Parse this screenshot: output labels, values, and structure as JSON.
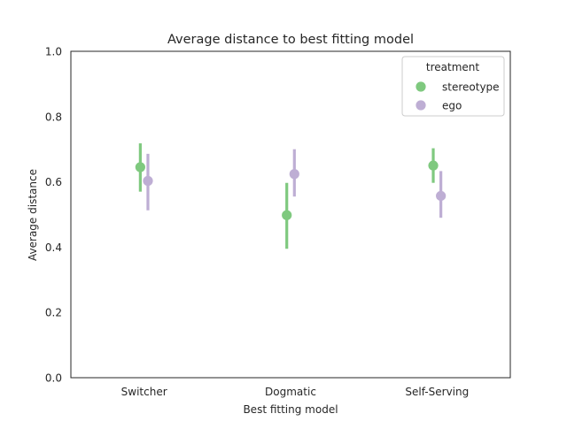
{
  "chart_data": {
    "type": "pointplot",
    "title": "Average distance to best fitting model",
    "xlabel": "Best fitting model",
    "ylabel": "Average distance",
    "categories": [
      "Switcher",
      "Dogmatic",
      "Self-Serving"
    ],
    "ylim": [
      0.0,
      1.0
    ],
    "yticks": [
      "0.0",
      "0.2",
      "0.4",
      "0.6",
      "0.8",
      "1.0"
    ],
    "grid": false,
    "legend": {
      "title": "treatment",
      "placement": "upper right",
      "entries": [
        "stereotype",
        "ego"
      ]
    },
    "series": [
      {
        "name": "stereotype",
        "color": "#7fc97f",
        "values": [
          0.645,
          0.498,
          0.65
        ],
        "ci_low": [
          0.57,
          0.395,
          0.597
        ],
        "ci_high": [
          0.718,
          0.597,
          0.703
        ]
      },
      {
        "name": "ego",
        "color": "#beaed4",
        "values": [
          0.603,
          0.624,
          0.557
        ],
        "ci_low": [
          0.513,
          0.555,
          0.49
        ],
        "ci_high": [
          0.686,
          0.7,
          0.633
        ]
      }
    ]
  }
}
